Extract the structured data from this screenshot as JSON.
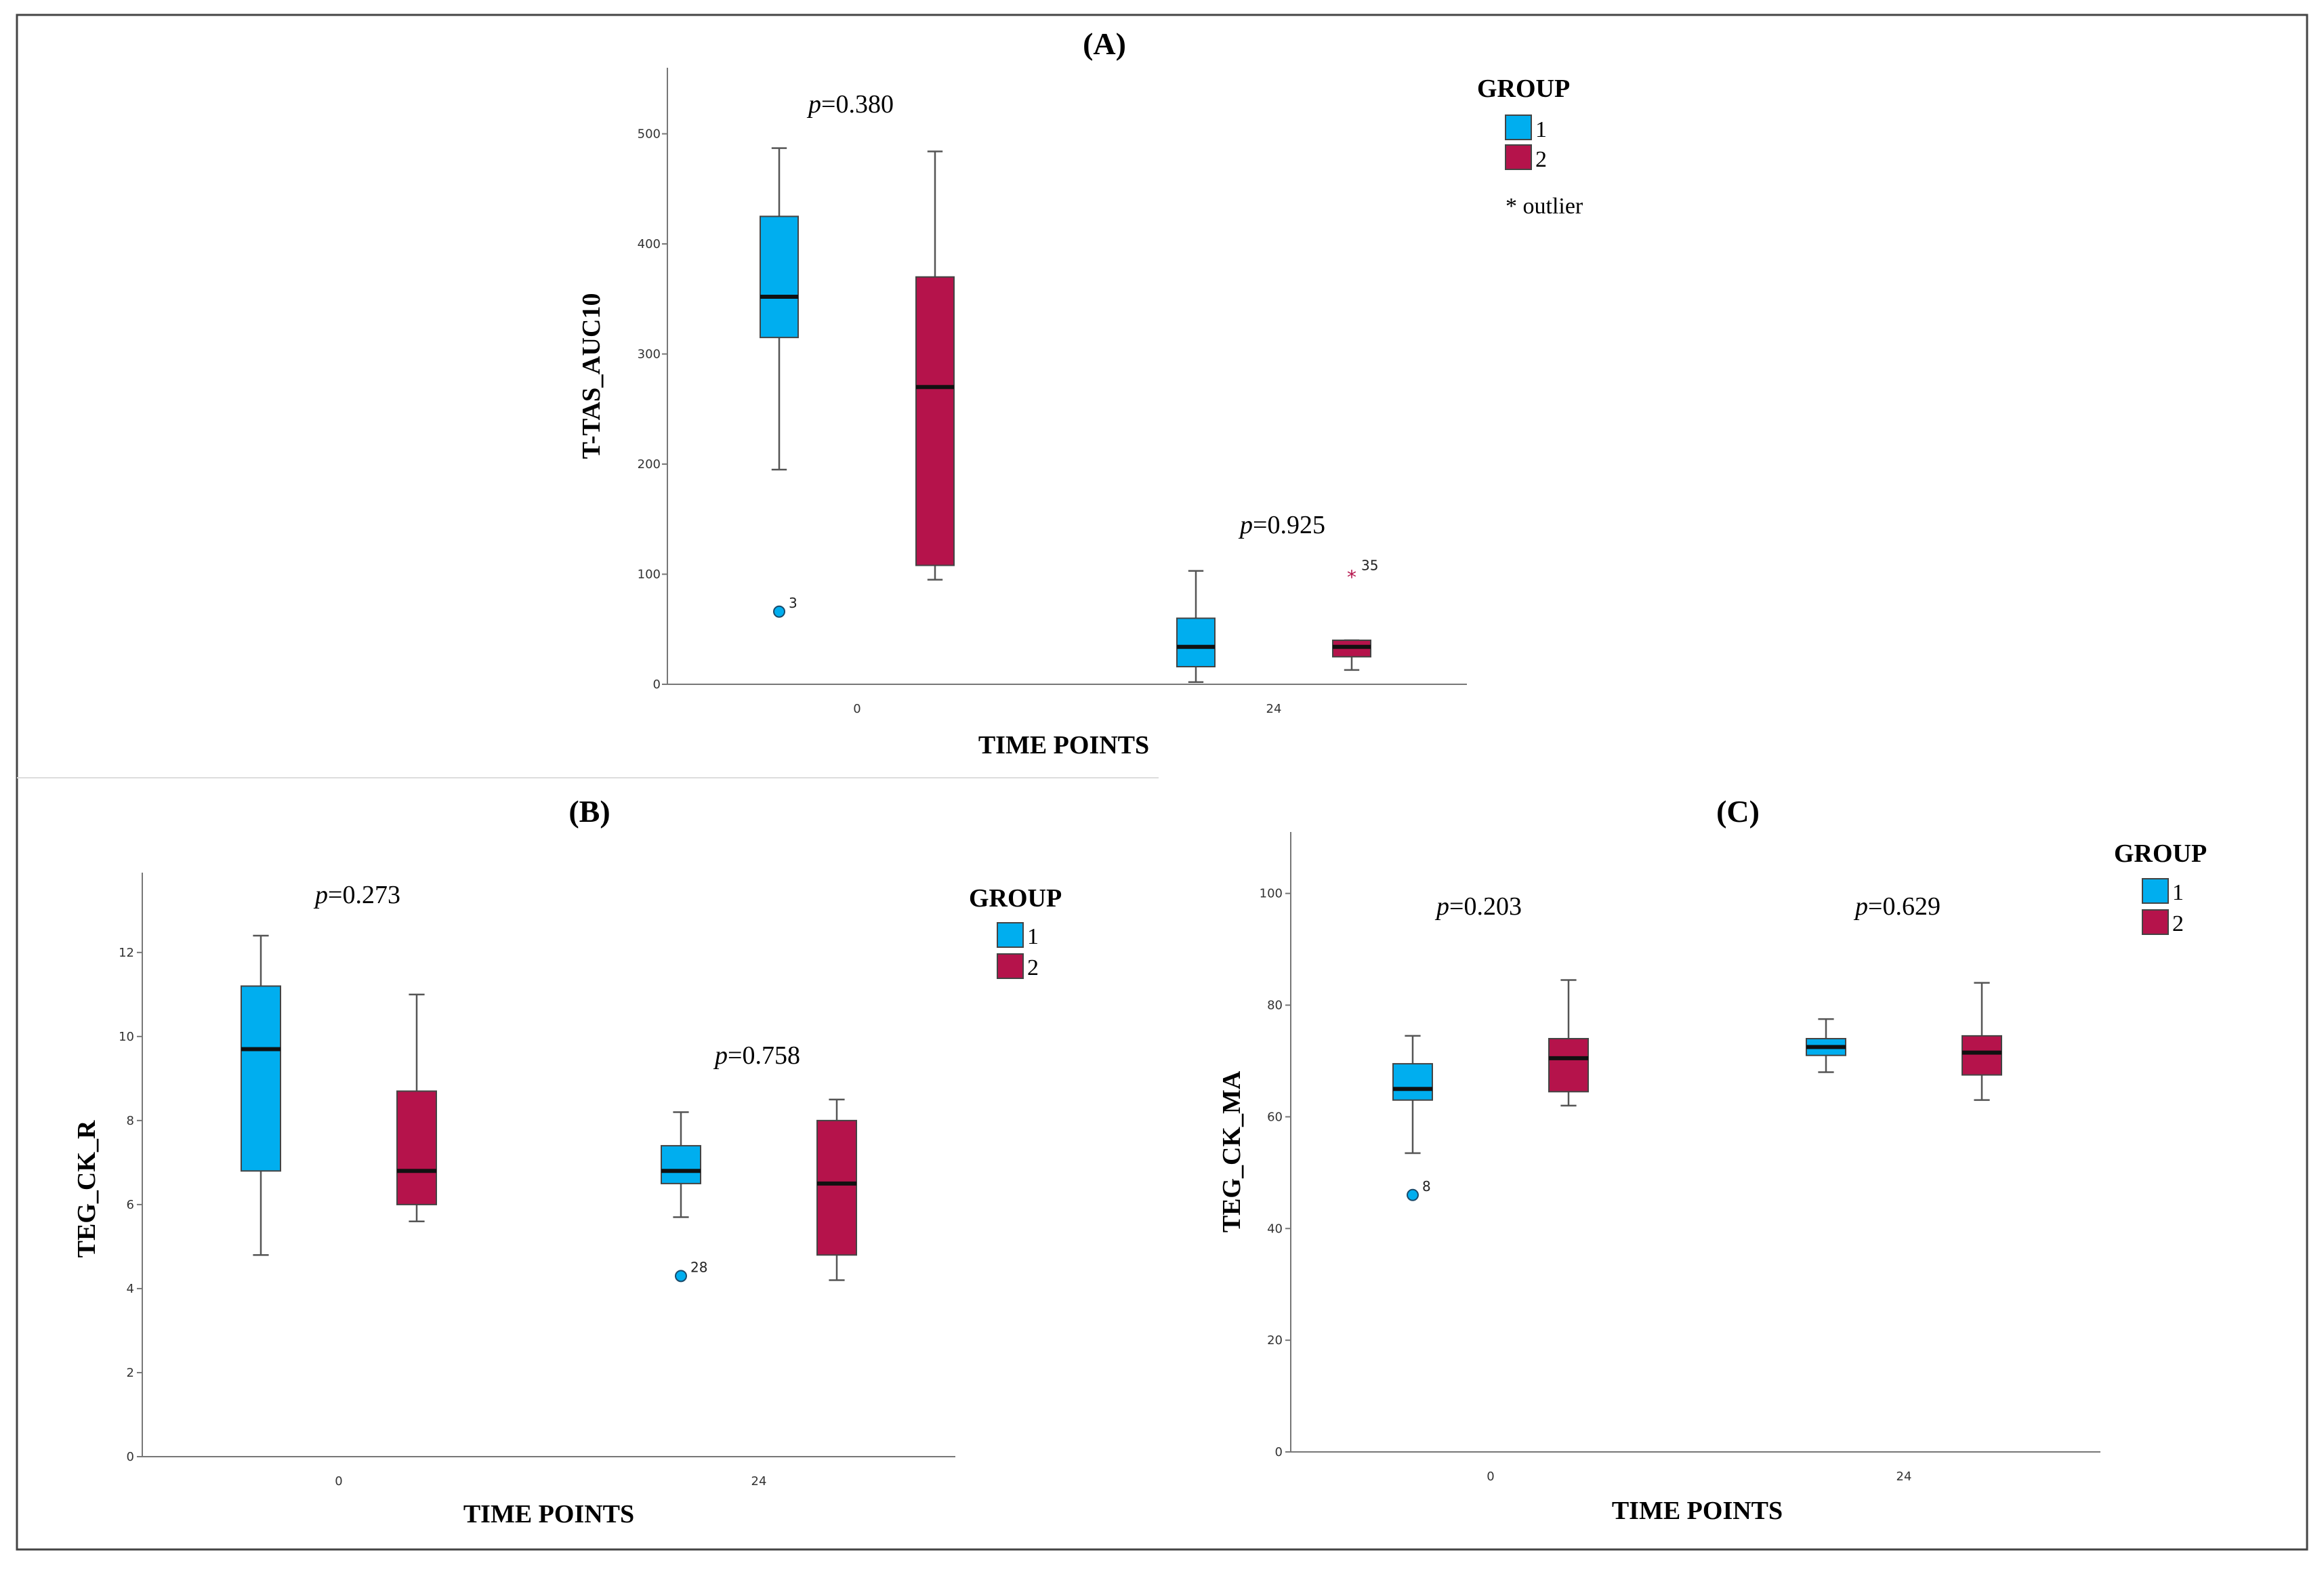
{
  "chart_data": [
    {
      "id": "A",
      "type": "boxplot",
      "title": "(A)",
      "ylabel": "T-TAS_AUC10",
      "xlabel": "TIME POINTS",
      "categories": [
        "0",
        "24"
      ],
      "ylim": [
        0,
        560
      ],
      "yticks": [
        0,
        100,
        200,
        300,
        400,
        500
      ],
      "p_values": [
        "0.380",
        "0.925"
      ],
      "legend": {
        "title": "GROUP",
        "entries": [
          "1",
          "2"
        ],
        "note": "* outlier"
      },
      "series": [
        {
          "name": "1",
          "color": "#00aeef",
          "boxes": [
            {
              "min": 195,
              "q1": 315,
              "median": 352,
              "q3": 425,
              "max": 487
            },
            {
              "min": 2,
              "q1": 16,
              "median": 34,
              "q3": 60,
              "max": 103
            }
          ]
        },
        {
          "name": "2",
          "color": "#b5134b",
          "boxes": [
            {
              "min": 95,
              "q1": 108,
              "median": 270,
              "q3": 370,
              "max": 484
            },
            {
              "min": 13,
              "q1": 25,
              "median": 34,
              "q3": 40,
              "max": 40
            }
          ]
        }
      ],
      "outliers": [
        {
          "series": "1",
          "category": "0",
          "value": 66,
          "label": "3",
          "marker": "circle"
        },
        {
          "series": "2",
          "category": "24",
          "value": 100,
          "label": "35",
          "marker": "star"
        }
      ]
    },
    {
      "id": "B",
      "type": "boxplot",
      "title": "(B)",
      "ylabel": "TEG_CK_R",
      "xlabel": "TIME POINTS",
      "categories": [
        "0",
        "24"
      ],
      "ylim": [
        0,
        13.9
      ],
      "yticks": [
        0,
        2,
        4,
        6,
        8,
        10,
        12
      ],
      "p_values": [
        "0.273",
        "0.758"
      ],
      "legend": {
        "title": "GROUP",
        "entries": [
          "1",
          "2"
        ]
      },
      "series": [
        {
          "name": "1",
          "color": "#00aeef",
          "boxes": [
            {
              "min": 4.8,
              "q1": 6.8,
              "median": 9.7,
              "q3": 11.2,
              "max": 12.4
            },
            {
              "min": 5.7,
              "q1": 6.5,
              "median": 6.8,
              "q3": 7.4,
              "max": 8.2
            }
          ]
        },
        {
          "name": "2",
          "color": "#b5134b",
          "boxes": [
            {
              "min": 5.6,
              "q1": 6.0,
              "median": 6.8,
              "q3": 8.7,
              "max": 11.0
            },
            {
              "min": 4.2,
              "q1": 4.8,
              "median": 6.5,
              "q3": 8.0,
              "max": 8.5
            }
          ]
        }
      ],
      "outliers": [
        {
          "series": "1",
          "category": "24",
          "value": 4.3,
          "label": "28",
          "marker": "circle"
        }
      ]
    },
    {
      "id": "C",
      "type": "boxplot",
      "title": "(C)",
      "ylabel": "TEG_CK_MA",
      "xlabel": "TIME POINTS",
      "categories": [
        "0",
        "24"
      ],
      "ylim": [
        0,
        111
      ],
      "yticks": [
        0,
        20,
        40,
        60,
        80,
        100
      ],
      "p_values": [
        "0.203",
        "0.629"
      ],
      "legend": {
        "title": "GROUP",
        "entries": [
          "1",
          "2"
        ]
      },
      "series": [
        {
          "name": "1",
          "color": "#00aeef",
          "boxes": [
            {
              "min": 53.5,
              "q1": 63,
              "median": 65,
              "q3": 69.5,
              "max": 74.5
            },
            {
              "min": 68,
              "q1": 71,
              "median": 72.5,
              "q3": 74,
              "max": 77.5
            }
          ]
        },
        {
          "name": "2",
          "color": "#b5134b",
          "boxes": [
            {
              "min": 62,
              "q1": 64.5,
              "median": 70.5,
              "q3": 74,
              "max": 84.5
            },
            {
              "min": 63,
              "q1": 67.5,
              "median": 71.5,
              "q3": 74.5,
              "max": 84
            }
          ]
        }
      ],
      "outliers": [
        {
          "series": "1",
          "category": "0",
          "value": 46,
          "label": "8",
          "marker": "circle"
        }
      ]
    }
  ]
}
